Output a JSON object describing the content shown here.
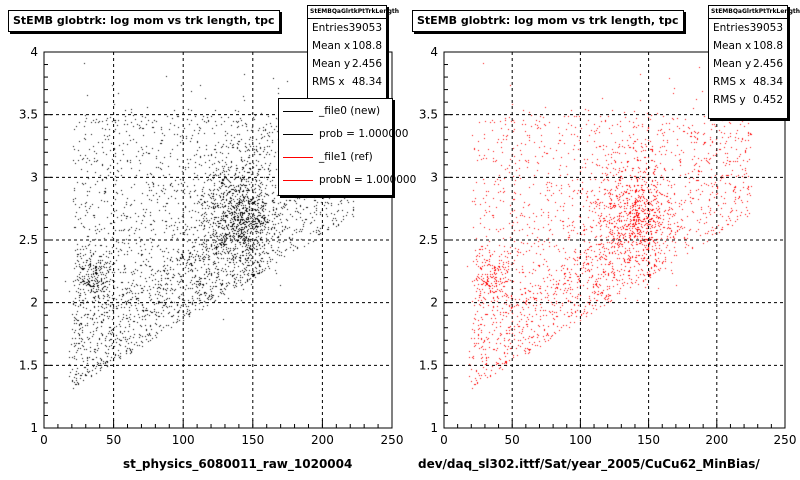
{
  "chart_data": [
    {
      "type": "scatter",
      "title": "StEMB globtrk: log mom vs trk length, tpc",
      "xlabel": "st_physics_6080011_raw_1020004",
      "ylabel": "",
      "xlim": [
        0,
        250
      ],
      "ylim": [
        1,
        4
      ],
      "xticks": [
        "0",
        "50",
        "100",
        "150",
        "200",
        "250"
      ],
      "yticks": [
        "1",
        "1.5",
        "2",
        "2.5",
        "3",
        "3.5",
        "4"
      ],
      "grid": true,
      "color": "#000000",
      "stats": {
        "name": "StEMBQaGlrtkPtTrkLength",
        "entries_label": "Entries",
        "entries": "39053",
        "meanx_label": "Mean x",
        "meanx": "108.8",
        "meany_label": "Mean y",
        "meany": "2.456",
        "rmsx_label": "RMS x",
        "rmsx": "48.34"
      },
      "legend": {
        "placement": "top-right",
        "entries": [
          {
            "label": "_file0 (new)",
            "color": "#000000"
          },
          {
            "label": "prob = 1.000000",
            "color": "#000000"
          },
          {
            "label": "_file1 (ref)",
            "color": "#ff0000"
          },
          {
            "label": "probN = 1.000000",
            "color": "#ff0000"
          }
        ]
      }
    },
    {
      "type": "scatter",
      "title": "StEMB globtrk: log mom vs trk length, tpc",
      "xlabel": "dev/daq_sl302.ittf/Sat/year_2005/CuCu62_MinBias/",
      "ylabel": "",
      "xlim": [
        0,
        250
      ],
      "ylim": [
        1,
        4
      ],
      "xticks": [
        "0",
        "50",
        "100",
        "150",
        "200",
        "250"
      ],
      "yticks": [
        "1",
        "1.5",
        "2",
        "2.5",
        "3",
        "3.5",
        "4"
      ],
      "grid": true,
      "color": "#ff0000",
      "stats": {
        "name": "StEMBQaGlrtkPtTrkLength",
        "entries_label": "Entries",
        "entries": "39053",
        "meanx_label": "Mean x",
        "meanx": "108.8",
        "meany_label": "Mean y",
        "meany": "2.456",
        "rmsx_label": "RMS x",
        "rmsx": "48.34",
        "rmsy_label": "RMS y",
        "rmsy": "0.452"
      }
    }
  ]
}
